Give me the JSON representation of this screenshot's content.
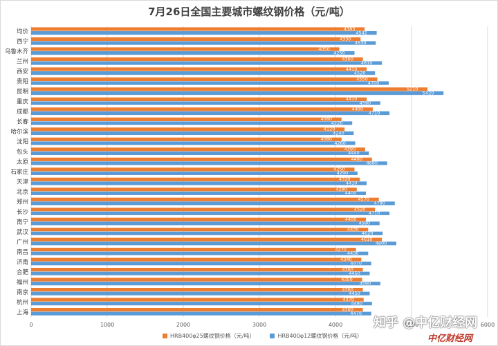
{
  "chart_data": {
    "type": "bar",
    "orientation": "horizontal",
    "title": "7月26日全国主要城市螺纹钢价格（元/吨）",
    "categories": [
      "均价",
      "西宁",
      "乌鲁木齐",
      "兰州",
      "西安",
      "贵阳",
      "昆明",
      "重庆",
      "成都",
      "长春",
      "哈尔滨",
      "沈阳",
      "包头",
      "太原",
      "石家庄",
      "天津",
      "北京",
      "郑州",
      "长沙",
      "南宁",
      "武汉",
      "广州",
      "南昌",
      "济南",
      "合肥",
      "福州",
      "南京",
      "杭州",
      "上海"
    ],
    "series": [
      {
        "name": "HRB400φ25螺纹钢价格（元/吨）",
        "color": "#ed7d31",
        "values": [
          4383,
          4330,
          4050,
          4360,
          4410,
          4550,
          5210,
          4410,
          4490,
          4080,
          4120,
          4080,
          4390,
          4480,
          4250,
          4320,
          4280,
          4570,
          4520,
          4400,
          4430,
          4610,
          4270,
          4340,
          4360,
          4350,
          4360,
          4370,
          4360
        ]
      },
      {
        "name": "HRB400φ12螺纹钢价格（元/吨）",
        "color": "#5b9bd5",
        "values": [
          4542,
          4530,
          4250,
          4610,
          4520,
          4700,
          5420,
          4590,
          4710,
          4220,
          4240,
          4260,
          4440,
          4680,
          4290,
          4410,
          4400,
          4780,
          4710,
          4580,
          4620,
          4800,
          4430,
          4470,
          4450,
          4590,
          4450,
          4480,
          4470
        ]
      }
    ],
    "xlim": [
      0,
      6000
    ],
    "xticks": [
      0,
      1000,
      2000,
      3000,
      4000,
      5000,
      6000
    ],
    "xgrid": true,
    "legend_position": "bottom"
  },
  "watermark": "知乎 @中亿财经网",
  "logo": "中亿财经网"
}
